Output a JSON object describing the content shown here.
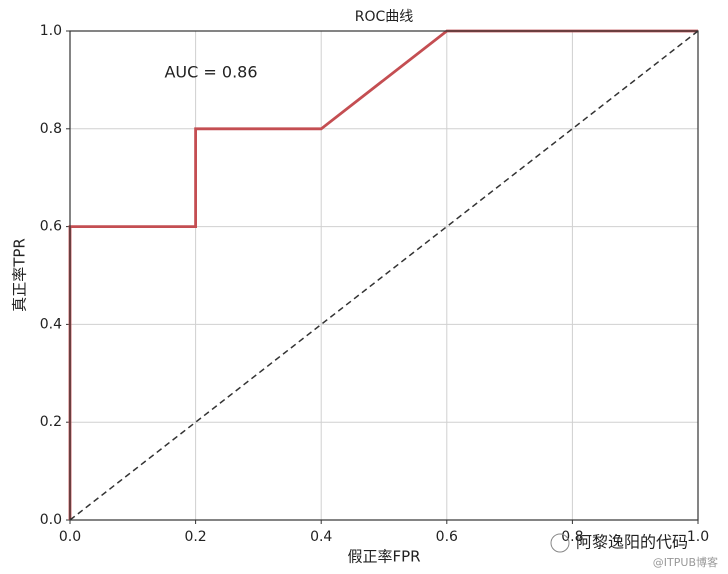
{
  "chart_data": {
    "type": "line",
    "title": "ROC曲线",
    "x_label": "假正率FPR",
    "y_label": "真正率TPR",
    "annotation": "AUC = 0.86",
    "series": [
      {
        "color": "#c44e52",
        "style": "solid",
        "x": [
          0,
          0,
          0.2,
          0.2,
          0.4,
          0.6,
          1.0
        ],
        "values": [
          0,
          0.6,
          0.6,
          0.8,
          0.8,
          1.0,
          1.0
        ]
      },
      {
        "color": "#333333",
        "style": "dashed",
        "x": [
          0,
          1.0
        ],
        "values": [
          0,
          1.0
        ]
      }
    ],
    "xlim": [
      0,
      1.0
    ],
    "ylim": [
      0,
      1.0
    ],
    "xticks": [
      {
        "value": 0,
        "label": "0.0"
      },
      0.2,
      0.4,
      0.6,
      0.8,
      {
        "value": 1.0,
        "label": "1.0"
      }
    ],
    "yticks": [
      {
        "value": 0,
        "label": "0.0"
      },
      0.2,
      0.4,
      0.6,
      0.8,
      {
        "value": 1.0,
        "label": "1.0"
      }
    ],
    "grid": true,
    "watermark": [
      "阿黎逸阳的代码",
      "@ITPUB博客"
    ]
  }
}
